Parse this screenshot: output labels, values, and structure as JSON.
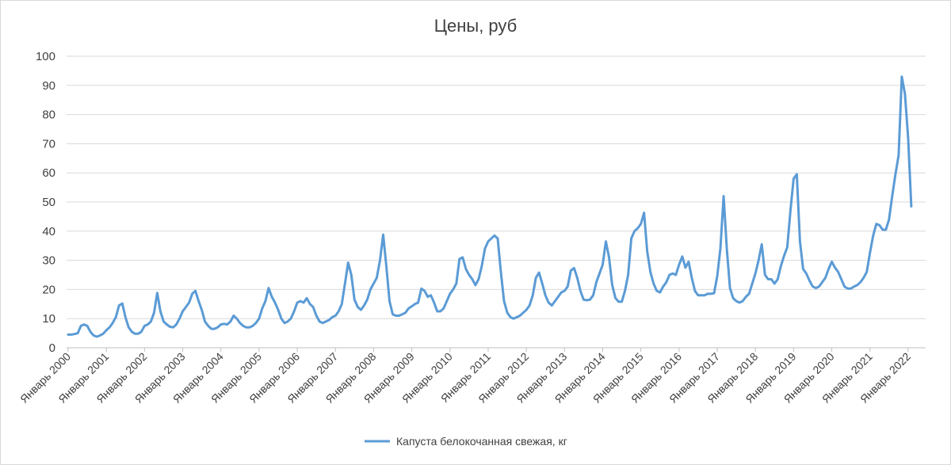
{
  "chart_data": {
    "type": "line",
    "title": "Цены, руб",
    "xlabel": "",
    "ylabel": "",
    "ylim": [
      0,
      100
    ],
    "yticks": [
      0,
      10,
      20,
      30,
      40,
      50,
      60,
      70,
      80,
      90,
      100
    ],
    "grid": "horizontal",
    "legend_position": "bottom",
    "x_start": "Январь 2000",
    "x_labels": [
      "Январь 2000",
      "Январь 2001",
      "Январь 2002",
      "Январь 2003",
      "Январь 2004",
      "Январь 2005",
      "Январь 2006",
      "Январь 2007",
      "Январь 2008",
      "Январь 2009",
      "Январь 2010",
      "Январь 2011",
      "Январь 2012",
      "Январь 2013",
      "Январь 2014",
      "Январь 2015",
      "Январь 2016",
      "Январь 2017",
      "Январь 2018",
      "Январь 2019",
      "Январь 2020",
      "Январь 2021",
      "Январь 2022"
    ],
    "series": [
      {
        "name": "Капуста белокочанная свежая, кг",
        "color": "#5b9bd5",
        "values": [
          4.5,
          4.5,
          4.7,
          5.0,
          7.5,
          8.0,
          7.5,
          5.5,
          4.2,
          3.8,
          4.2,
          4.8,
          6.0,
          7.0,
          8.5,
          10.5,
          14.5,
          15.2,
          10.5,
          7.0,
          5.5,
          4.8,
          4.8,
          5.5,
          7.5,
          8.0,
          9.0,
          12.0,
          18.8,
          12.5,
          9.0,
          8.0,
          7.2,
          7.0,
          8.0,
          10.0,
          12.5,
          14.0,
          15.5,
          18.5,
          19.5,
          16.0,
          13.0,
          9.0,
          7.5,
          6.5,
          6.5,
          7.0,
          8.0,
          8.2,
          8.0,
          9.0,
          11.0,
          10.0,
          8.5,
          7.5,
          7.0,
          7.0,
          7.5,
          8.5,
          10.0,
          13.5,
          16.0,
          20.5,
          17.5,
          15.5,
          13.0,
          10.0,
          8.5,
          9.0,
          10.0,
          12.5,
          15.5,
          16.0,
          15.5,
          17.0,
          15.0,
          14.0,
          11.0,
          9.0,
          8.5,
          9.0,
          9.5,
          10.5,
          11.0,
          12.5,
          15.0,
          22.0,
          29.2,
          25.0,
          16.5,
          14.0,
          13.0,
          14.5,
          16.5,
          20.0,
          22.0,
          24.0,
          30.0,
          38.8,
          28.0,
          16.0,
          11.5,
          11.0,
          11.0,
          11.5,
          12.0,
          13.5,
          14.2,
          15.0,
          15.5,
          20.3,
          19.5,
          17.5,
          18.0,
          15.5,
          12.5,
          12.5,
          13.5,
          16.0,
          18.5,
          20.0,
          22.0,
          30.5,
          31.0,
          27.0,
          25.0,
          23.5,
          21.5,
          23.5,
          28.0,
          34.0,
          36.5,
          37.5,
          38.5,
          37.5,
          26.0,
          16.0,
          12.0,
          10.5,
          10.0,
          10.5,
          11.0,
          12.0,
          13.0,
          14.5,
          18.0,
          24.0,
          25.8,
          22.0,
          18.0,
          15.5,
          14.5,
          16.0,
          17.5,
          19.0,
          19.5,
          21.0,
          26.5,
          27.3,
          24.0,
          19.5,
          16.5,
          16.3,
          16.5,
          18.0,
          22.5,
          25.5,
          28.5,
          36.5,
          31.0,
          21.5,
          17.0,
          15.8,
          15.8,
          19.5,
          25.0,
          37.5,
          40.0,
          41.0,
          42.5,
          46.3,
          33.0,
          26.0,
          22.0,
          19.5,
          19.0,
          21.0,
          22.5,
          25.0,
          25.5,
          25.0,
          28.5,
          31.3,
          27.5,
          29.5,
          24.0,
          19.5,
          18.0,
          18.0,
          18.0,
          18.5,
          18.5,
          18.7,
          24.5,
          34.0,
          52.0,
          34.0,
          20.5,
          17.0,
          16.0,
          15.5,
          16.0,
          17.5,
          18.5,
          22.0,
          25.5,
          30.0,
          35.5,
          25.0,
          23.5,
          23.5,
          22.0,
          23.5,
          28.0,
          31.5,
          34.5,
          47.0,
          58.0,
          59.5,
          36.5,
          27.0,
          25.5,
          23.0,
          21.0,
          20.5,
          21.0,
          22.5,
          24.0,
          27.0,
          29.5,
          27.5,
          26.0,
          23.5,
          21.0,
          20.3,
          20.3,
          21.0,
          21.5,
          22.5,
          24.0,
          26.0,
          32.5,
          38.5,
          42.5,
          42.0,
          40.5,
          40.5,
          44.0,
          52.0,
          59.5,
          66.0,
          93.0,
          87.0,
          72.0,
          48.5
        ]
      }
    ]
  }
}
